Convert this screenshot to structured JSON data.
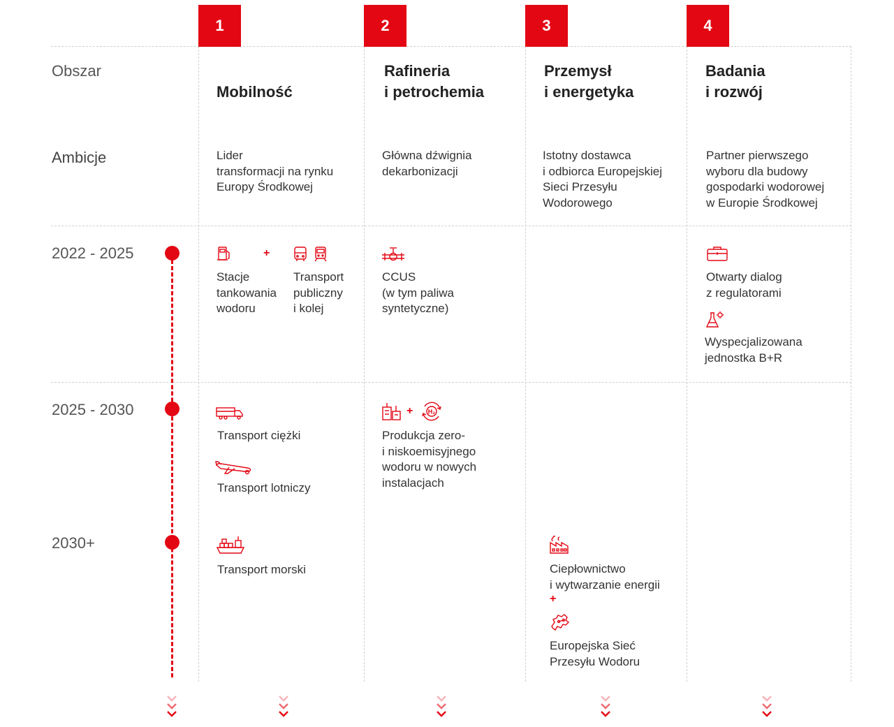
{
  "columns": [
    {
      "number": "1",
      "title": "Mobilność",
      "ambition": "Lider\ntransformacji na rynku\nEuropy Środkowej"
    },
    {
      "number": "2",
      "title": "Rafineria\ni petrochemia",
      "ambition": "Główna dźwignia\ndekarbonizacji"
    },
    {
      "number": "3",
      "title": "Przemysł\ni energetyka",
      "ambition": "Istotny dostawca\ni odbiorca Europejskiej\nSieci Przesyłu\nWodorowego"
    },
    {
      "number": "4",
      "title": "Badania\ni rozwój",
      "ambition": "Partner pierwszego\nwyboru dla budowy\ngospodarki wodorowej\nw Europie Środkowej"
    }
  ],
  "rows": {
    "area": "Obszar",
    "ambitions": "Ambicje",
    "period1": "2022 - 2025",
    "period2": "2025 - 2030",
    "period3": "2030+"
  },
  "items": {
    "hydrogen_stations": "Stacje\ntankowania\nwodoru",
    "public_transport": "Transport\npubliczny\ni kolej",
    "ccus": "CCUS\n(w tym paliwa\nsyntetyczne)",
    "regulators": "Otwarty dialog\nz regulatorami",
    "rd_unit": "Wyspecjalizowana\njednostka B+R",
    "heavy_transport": "Transport ciężki",
    "air_transport": "Transport lotniczy",
    "hydrogen_production": "Produkcja zero-\ni niskoemisyjnego\nwodoru w nowych\ninstalacjach",
    "sea_transport": "Transport morski",
    "heating": "Ciepłownictwo\ni wytwarzanie energii",
    "network": "Europejska Sieć\nPrzesyłu Wodoru"
  },
  "plus_sign": "+",
  "icons": {
    "hydrogen_station": "fuel-pump-icon",
    "bus": "bus-icon",
    "train": "train-icon",
    "ccus": "pipe-valve-icon",
    "briefcase": "briefcase-icon",
    "lab": "flask-icon",
    "truck": "truck-icon",
    "plane": "airplane-icon",
    "plant": "industrial-plant-icon",
    "h2_cycle": "h2-cycle-icon",
    "ship": "cargo-ship-icon",
    "factory": "factory-icon",
    "europe_map": "europe-map-icon",
    "chevron": "chevron-down-icon"
  },
  "colors": {
    "accent": "#e30613",
    "text": "#333333",
    "grid": "#cfcfcf"
  }
}
